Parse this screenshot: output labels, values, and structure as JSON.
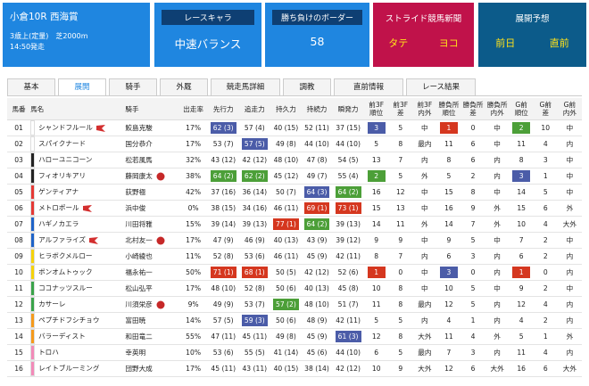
{
  "race": {
    "title": "小倉10R 西海賞",
    "conditions": "3歳上(定量)　芝2000m",
    "start": "14:50発走"
  },
  "panels": [
    {
      "label": "レースキャラ",
      "value": "中速バランス"
    },
    {
      "label": "勝ち負けのボーダー",
      "value": "58"
    }
  ],
  "newspaper": {
    "title": "ストライド競馬新聞",
    "links": [
      "タテ",
      "ヨコ"
    ]
  },
  "forecast": {
    "title": "展開予想",
    "links": [
      "前日",
      "直前"
    ]
  },
  "tabs": [
    "基本",
    "展開",
    "騎手",
    "外厩",
    "競走馬詳細",
    "調教",
    "直前情報",
    "レース結果"
  ],
  "active_tab": 1,
  "table": {
    "columns": [
      "馬番",
      "馬名",
      "騎手",
      "出走率",
      "先行力",
      "追走力",
      "持久力",
      "持続力",
      "瞬発力",
      "前3F\n順位",
      "前3F\n差",
      "前3F\n内外",
      "勝負所\n順位",
      "勝負所\n差",
      "勝負所\n内外",
      "G前\n順位",
      "G前\n差",
      "G前\n内外"
    ],
    "rows": [
      {
        "gate_color": "#ffffff",
        "flag": true,
        "jockey_icon": false,
        "cells": [
          "01",
          "シャンドフルール",
          "鮫島克駿",
          "17%",
          {
            "text": "62 (3)",
            "color": "#4b5ca8"
          },
          "57 (4)",
          "40 (15)",
          "52 (11)",
          "37 (15)",
          {
            "text": "3",
            "color": "#4b5ca8"
          },
          "5",
          "中",
          {
            "text": "1",
            "color": "#d5371f"
          },
          "0",
          "中",
          {
            "text": "2",
            "color": "#4c9f38"
          },
          "10",
          "中"
        ]
      },
      {
        "gate_color": "#ffffff",
        "flag": false,
        "jockey_icon": false,
        "cells": [
          "02",
          "スパイクナード",
          "国分恭介",
          "17%",
          "53 (7)",
          {
            "text": "57 (5)",
            "color": "#4b5ca8"
          },
          "49 (8)",
          "44 (10)",
          "44 (10)",
          "5",
          "8",
          "最内",
          "11",
          "6",
          "中",
          "11",
          "4",
          "内"
        ]
      },
      {
        "gate_color": "#222222",
        "flag": false,
        "jockey_icon": false,
        "cells": [
          "03",
          "ハローユニコーン",
          "松若風馬",
          "32%",
          "43 (12)",
          "42 (12)",
          "48 (10)",
          "47 (8)",
          "54 (5)",
          "13",
          "7",
          "内",
          "8",
          "6",
          "内",
          "8",
          "3",
          "中"
        ]
      },
      {
        "gate_color": "#222222",
        "flag": false,
        "jockey_icon": true,
        "cells": [
          "04",
          "フィオリキアリ",
          "藤岡康太",
          "38%",
          {
            "text": "64 (2)",
            "color": "#4c9f38"
          },
          {
            "text": "62 (2)",
            "color": "#4c9f38"
          },
          "45 (12)",
          "49 (7)",
          "55 (4)",
          {
            "text": "2",
            "color": "#4c9f38"
          },
          "5",
          "外",
          "5",
          "2",
          "内",
          {
            "text": "3",
            "color": "#4b5ca8"
          },
          "1",
          "中"
        ]
      },
      {
        "gate_color": "#e53935",
        "flag": false,
        "jockey_icon": false,
        "cells": [
          "05",
          "ゲンティアナ",
          "荻野極",
          "42%",
          "37 (16)",
          "36 (14)",
          "50 (7)",
          {
            "text": "64 (3)",
            "color": "#4b5ca8"
          },
          {
            "text": "64 (2)",
            "color": "#4c9f38"
          },
          "16",
          "12",
          "中",
          "15",
          "8",
          "中",
          "14",
          "5",
          "中"
        ]
      },
      {
        "gate_color": "#e53935",
        "flag": true,
        "jockey_icon": false,
        "cells": [
          "06",
          "メトロポール",
          "浜中俊",
          "0%",
          "38 (15)",
          "34 (16)",
          "46 (11)",
          {
            "text": "69 (1)",
            "color": "#d5371f"
          },
          {
            "text": "73 (1)",
            "color": "#d5371f"
          },
          "15",
          "13",
          "中",
          "16",
          "9",
          "外",
          "15",
          "6",
          "外"
        ]
      },
      {
        "gate_color": "#1e63c8",
        "flag": false,
        "jockey_icon": false,
        "cells": [
          "07",
          "ハギノカエラ",
          "川田将雅",
          "15%",
          "39 (14)",
          "39 (13)",
          {
            "text": "77 (1)",
            "color": "#d5371f"
          },
          {
            "text": "64 (2)",
            "color": "#4c9f38"
          },
          "39 (13)",
          "14",
          "11",
          "外",
          "14",
          "7",
          "外",
          "10",
          "4",
          "大外"
        ]
      },
      {
        "gate_color": "#1e63c8",
        "flag": true,
        "jockey_icon": true,
        "cells": [
          "08",
          "アルファライズ",
          "北村友一",
          "17%",
          "47 (9)",
          "46 (9)",
          "40 (13)",
          "43 (9)",
          "39 (12)",
          "9",
          "9",
          "中",
          "9",
          "5",
          "中",
          "7",
          "2",
          "中"
        ]
      },
      {
        "gate_color": "#f5d20a",
        "flag": false,
        "jockey_icon": false,
        "cells": [
          "09",
          "ヒラボクメルロー",
          "小崎綾也",
          "11%",
          "52 (8)",
          "53 (6)",
          "46 (11)",
          "45 (9)",
          "42 (11)",
          "8",
          "7",
          "内",
          "6",
          "3",
          "内",
          "6",
          "2",
          "内"
        ]
      },
      {
        "gate_color": "#f5d20a",
        "flag": false,
        "jockey_icon": false,
        "cells": [
          "10",
          "ボンオムトゥック",
          "福永祐一",
          "50%",
          {
            "text": "71 (1)",
            "color": "#d5371f"
          },
          {
            "text": "68 (1)",
            "color": "#d5371f"
          },
          "50 (5)",
          "42 (12)",
          "52 (6)",
          {
            "text": "1",
            "color": "#d5371f"
          },
          "0",
          "中",
          {
            "text": "3",
            "color": "#4b5ca8"
          },
          "0",
          "内",
          {
            "text": "1",
            "color": "#d5371f"
          },
          "0",
          "内"
        ]
      },
      {
        "gate_color": "#3aa34a",
        "flag": false,
        "jockey_icon": false,
        "cells": [
          "11",
          "ココナッツスルー",
          "松山弘平",
          "17%",
          "48 (10)",
          "52 (8)",
          "50 (6)",
          "40 (13)",
          "45 (8)",
          "10",
          "8",
          "中",
          "10",
          "5",
          "中",
          "9",
          "2",
          "中"
        ]
      },
      {
        "gate_color": "#3aa34a",
        "flag": false,
        "jockey_icon": true,
        "cells": [
          "12",
          "カサーレ",
          "川須栄彦",
          "9%",
          "49 (9)",
          "53 (7)",
          {
            "text": "57 (2)",
            "color": "#4c9f38"
          },
          "48 (10)",
          "51 (7)",
          "11",
          "8",
          "最内",
          "12",
          "5",
          "内",
          "12",
          "4",
          "内"
        ]
      },
      {
        "gate_color": "#f59a1b",
        "flag": false,
        "jockey_icon": false,
        "cells": [
          "13",
          "ペプチドフシチョウ",
          "富田暁",
          "14%",
          "57 (5)",
          {
            "text": "59 (3)",
            "color": "#4b5ca8"
          },
          "50 (6)",
          "48 (9)",
          "42 (11)",
          "5",
          "5",
          "内",
          "4",
          "1",
          "内",
          "4",
          "2",
          "内"
        ]
      },
      {
        "gate_color": "#f59a1b",
        "flag": false,
        "jockey_icon": false,
        "cells": [
          "14",
          "バラーディスト",
          "和田竜二",
          "55%",
          "47 (11)",
          "45 (11)",
          "49 (8)",
          "45 (9)",
          {
            "text": "61 (3)",
            "color": "#4b5ca8"
          },
          "12",
          "8",
          "大外",
          "11",
          "4",
          "外",
          "5",
          "1",
          "外"
        ]
      },
      {
        "gate_color": "#f28ab8",
        "flag": false,
        "jockey_icon": false,
        "cells": [
          "15",
          "トロハ",
          "幸英明",
          "10%",
          "53 (6)",
          "55 (5)",
          "41 (14)",
          "45 (6)",
          "44 (10)",
          "6",
          "5",
          "最内",
          "7",
          "3",
          "内",
          "11",
          "4",
          "内"
        ]
      },
      {
        "gate_color": "#f28ab8",
        "flag": false,
        "jockey_icon": false,
        "cells": [
          "16",
          "レイトブルーミング",
          "団野大成",
          "17%",
          "45 (11)",
          "43 (11)",
          "40 (15)",
          "38 (14)",
          "42 (12)",
          "10",
          "9",
          "大外",
          "12",
          "6",
          "大外",
          "16",
          "6",
          "大外"
        ]
      }
    ]
  }
}
